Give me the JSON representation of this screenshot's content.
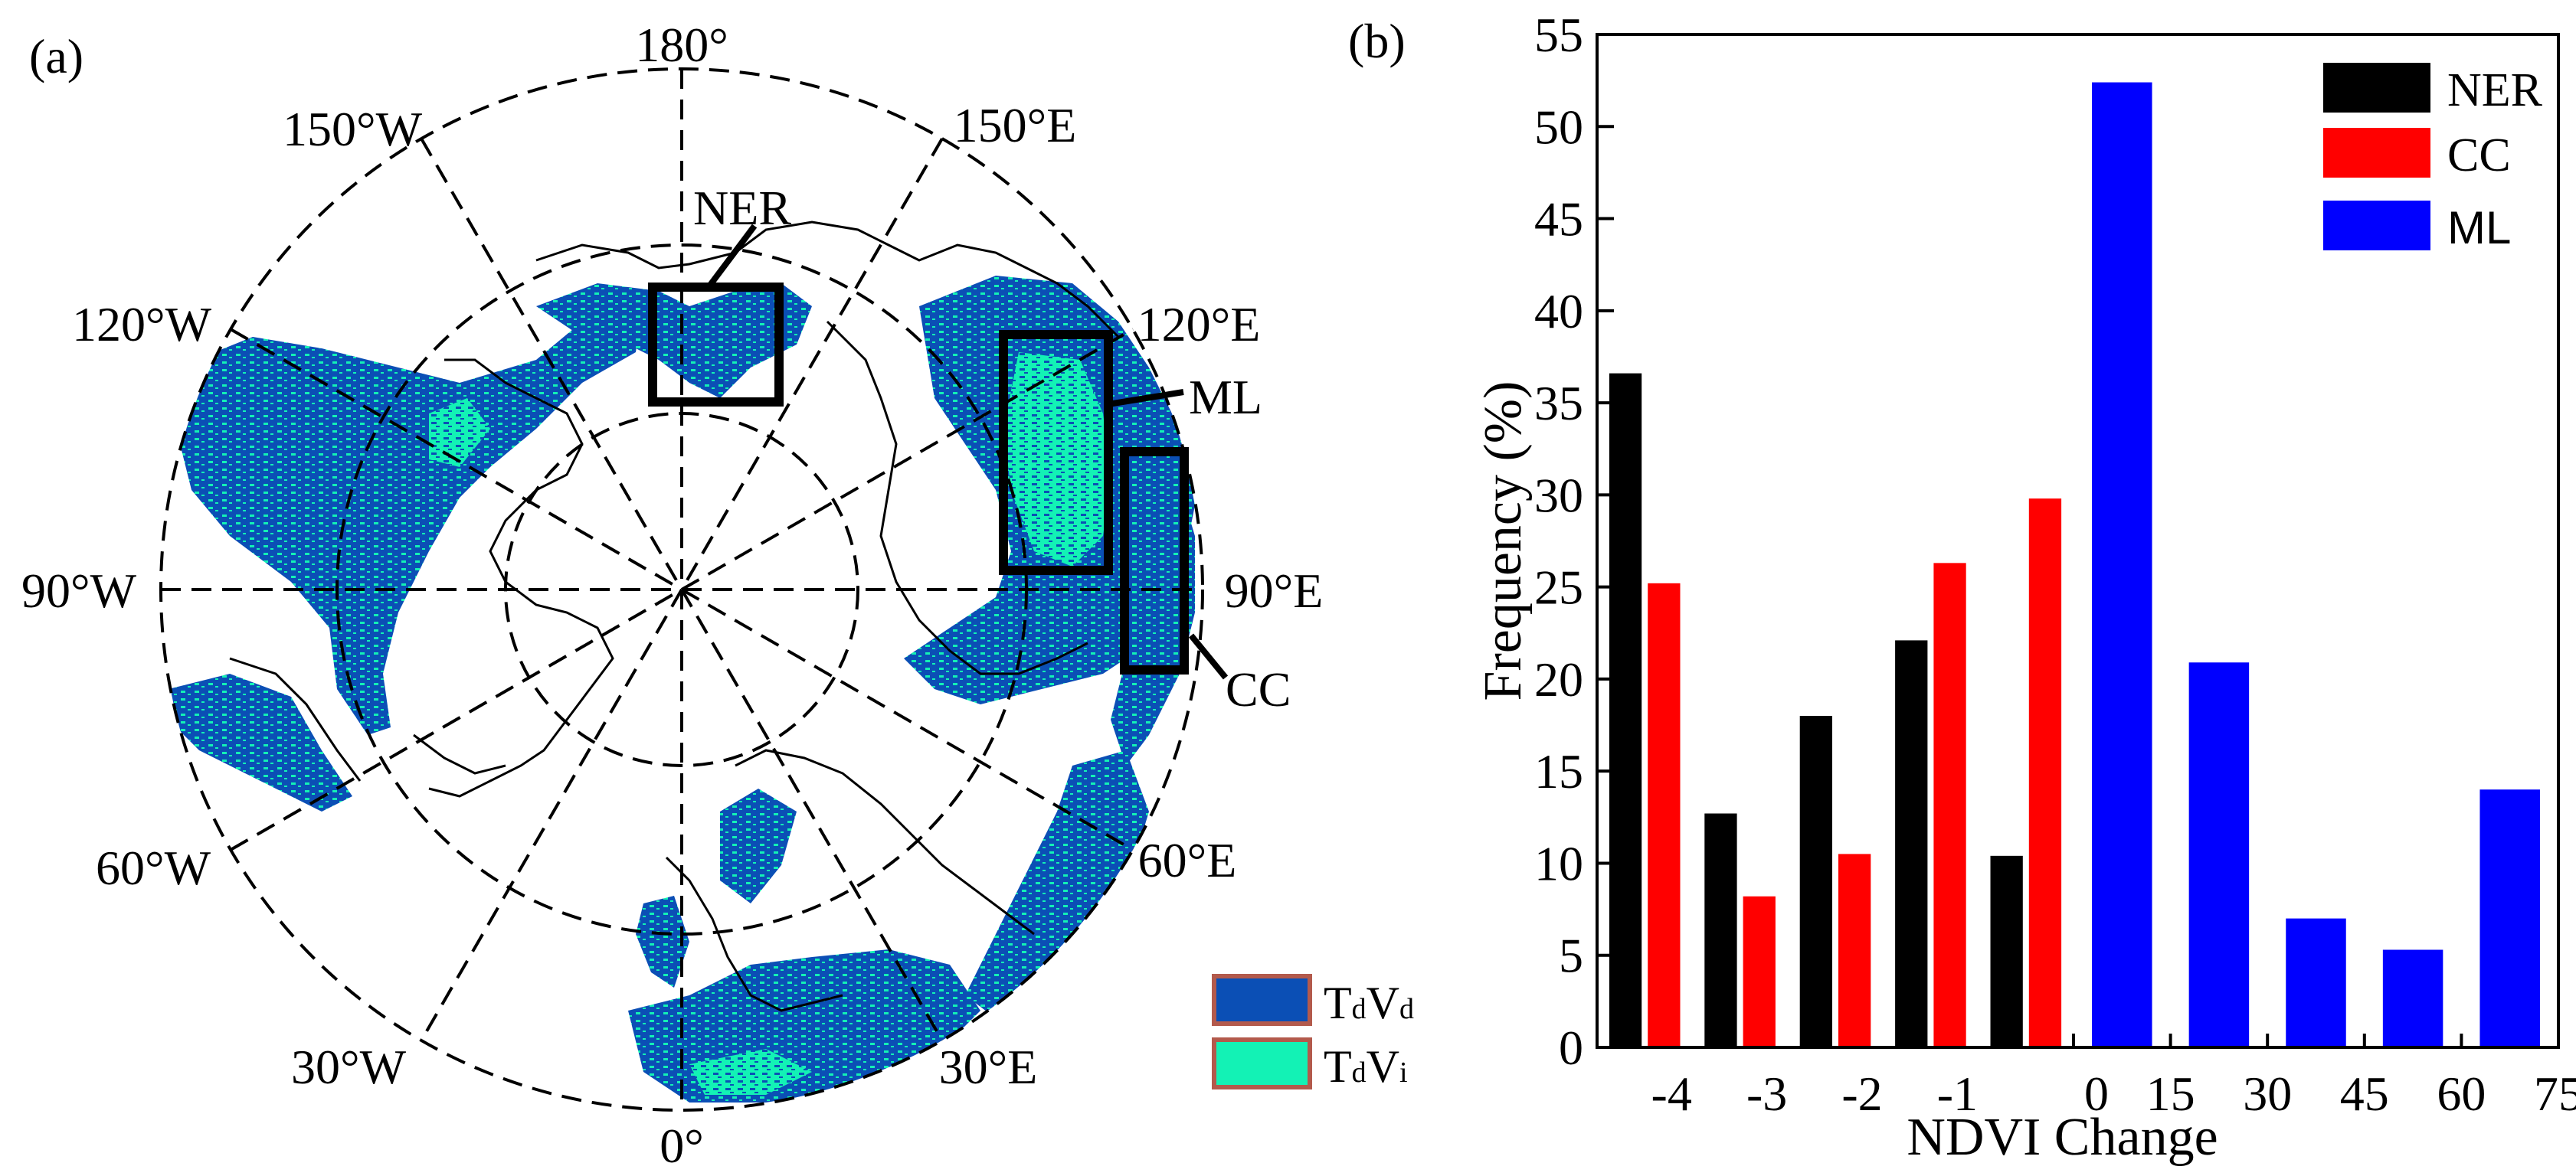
{
  "panel_a": {
    "label": "(a)",
    "longitude_labels": {
      "top": "180°",
      "w150": "150°W",
      "e150": "150°E",
      "w120": "120°W",
      "e120": "120°E",
      "w90": "90°W",
      "e90": "90°E",
      "w60": "60°W",
      "e60": "60°E",
      "w30": "30°W",
      "e30": "30°E",
      "bottom": "0°"
    },
    "regions": [
      {
        "name": "NER"
      },
      {
        "name": "ML"
      },
      {
        "name": "CC"
      }
    ],
    "legend": [
      {
        "base": "T",
        "sub1": "d",
        "mid": "V",
        "sub2": "d",
        "color": "#0b4fb5"
      },
      {
        "base": "T",
        "sub1": "d",
        "mid": "V",
        "sub2": "i",
        "color": "#13f2b5"
      }
    ]
  },
  "chart_data": {
    "type": "bar",
    "panel_label": "(b)",
    "title": "",
    "xlabel": "NDVI Change",
    "ylabel": "Frequency (%)",
    "ylim": [
      0,
      55
    ],
    "yticks": [
      0,
      5,
      10,
      15,
      20,
      25,
      30,
      35,
      40,
      45,
      50,
      55
    ],
    "groups": [
      {
        "slot": 0,
        "ner": 36.6,
        "cc": 25.2
      },
      {
        "slot": 1,
        "ner": 12.7,
        "cc": 8.2
      },
      {
        "slot": 2,
        "ner": 18.0,
        "cc": 10.5
      },
      {
        "slot": 3,
        "ner": 22.1,
        "cc": 26.3
      },
      {
        "slot": 4,
        "ner": 10.4,
        "cc": 29.8
      }
    ],
    "negative_tick_labels": [
      "-4",
      "-3",
      "-2",
      "-1"
    ],
    "ml_series": {
      "name": "ML",
      "values": [
        52.4,
        20.9,
        7.0,
        5.3,
        14.0
      ],
      "color": "#0000ff"
    },
    "positive_tick_labels": [
      "0",
      "15",
      "30",
      "45",
      "60",
      "75"
    ],
    "series": [
      {
        "name": "NER",
        "color": "#000000"
      },
      {
        "name": "CC",
        "color": "#ff0000"
      },
      {
        "name": "ML",
        "color": "#0000ff"
      }
    ],
    "legend_placement": "top-right"
  }
}
